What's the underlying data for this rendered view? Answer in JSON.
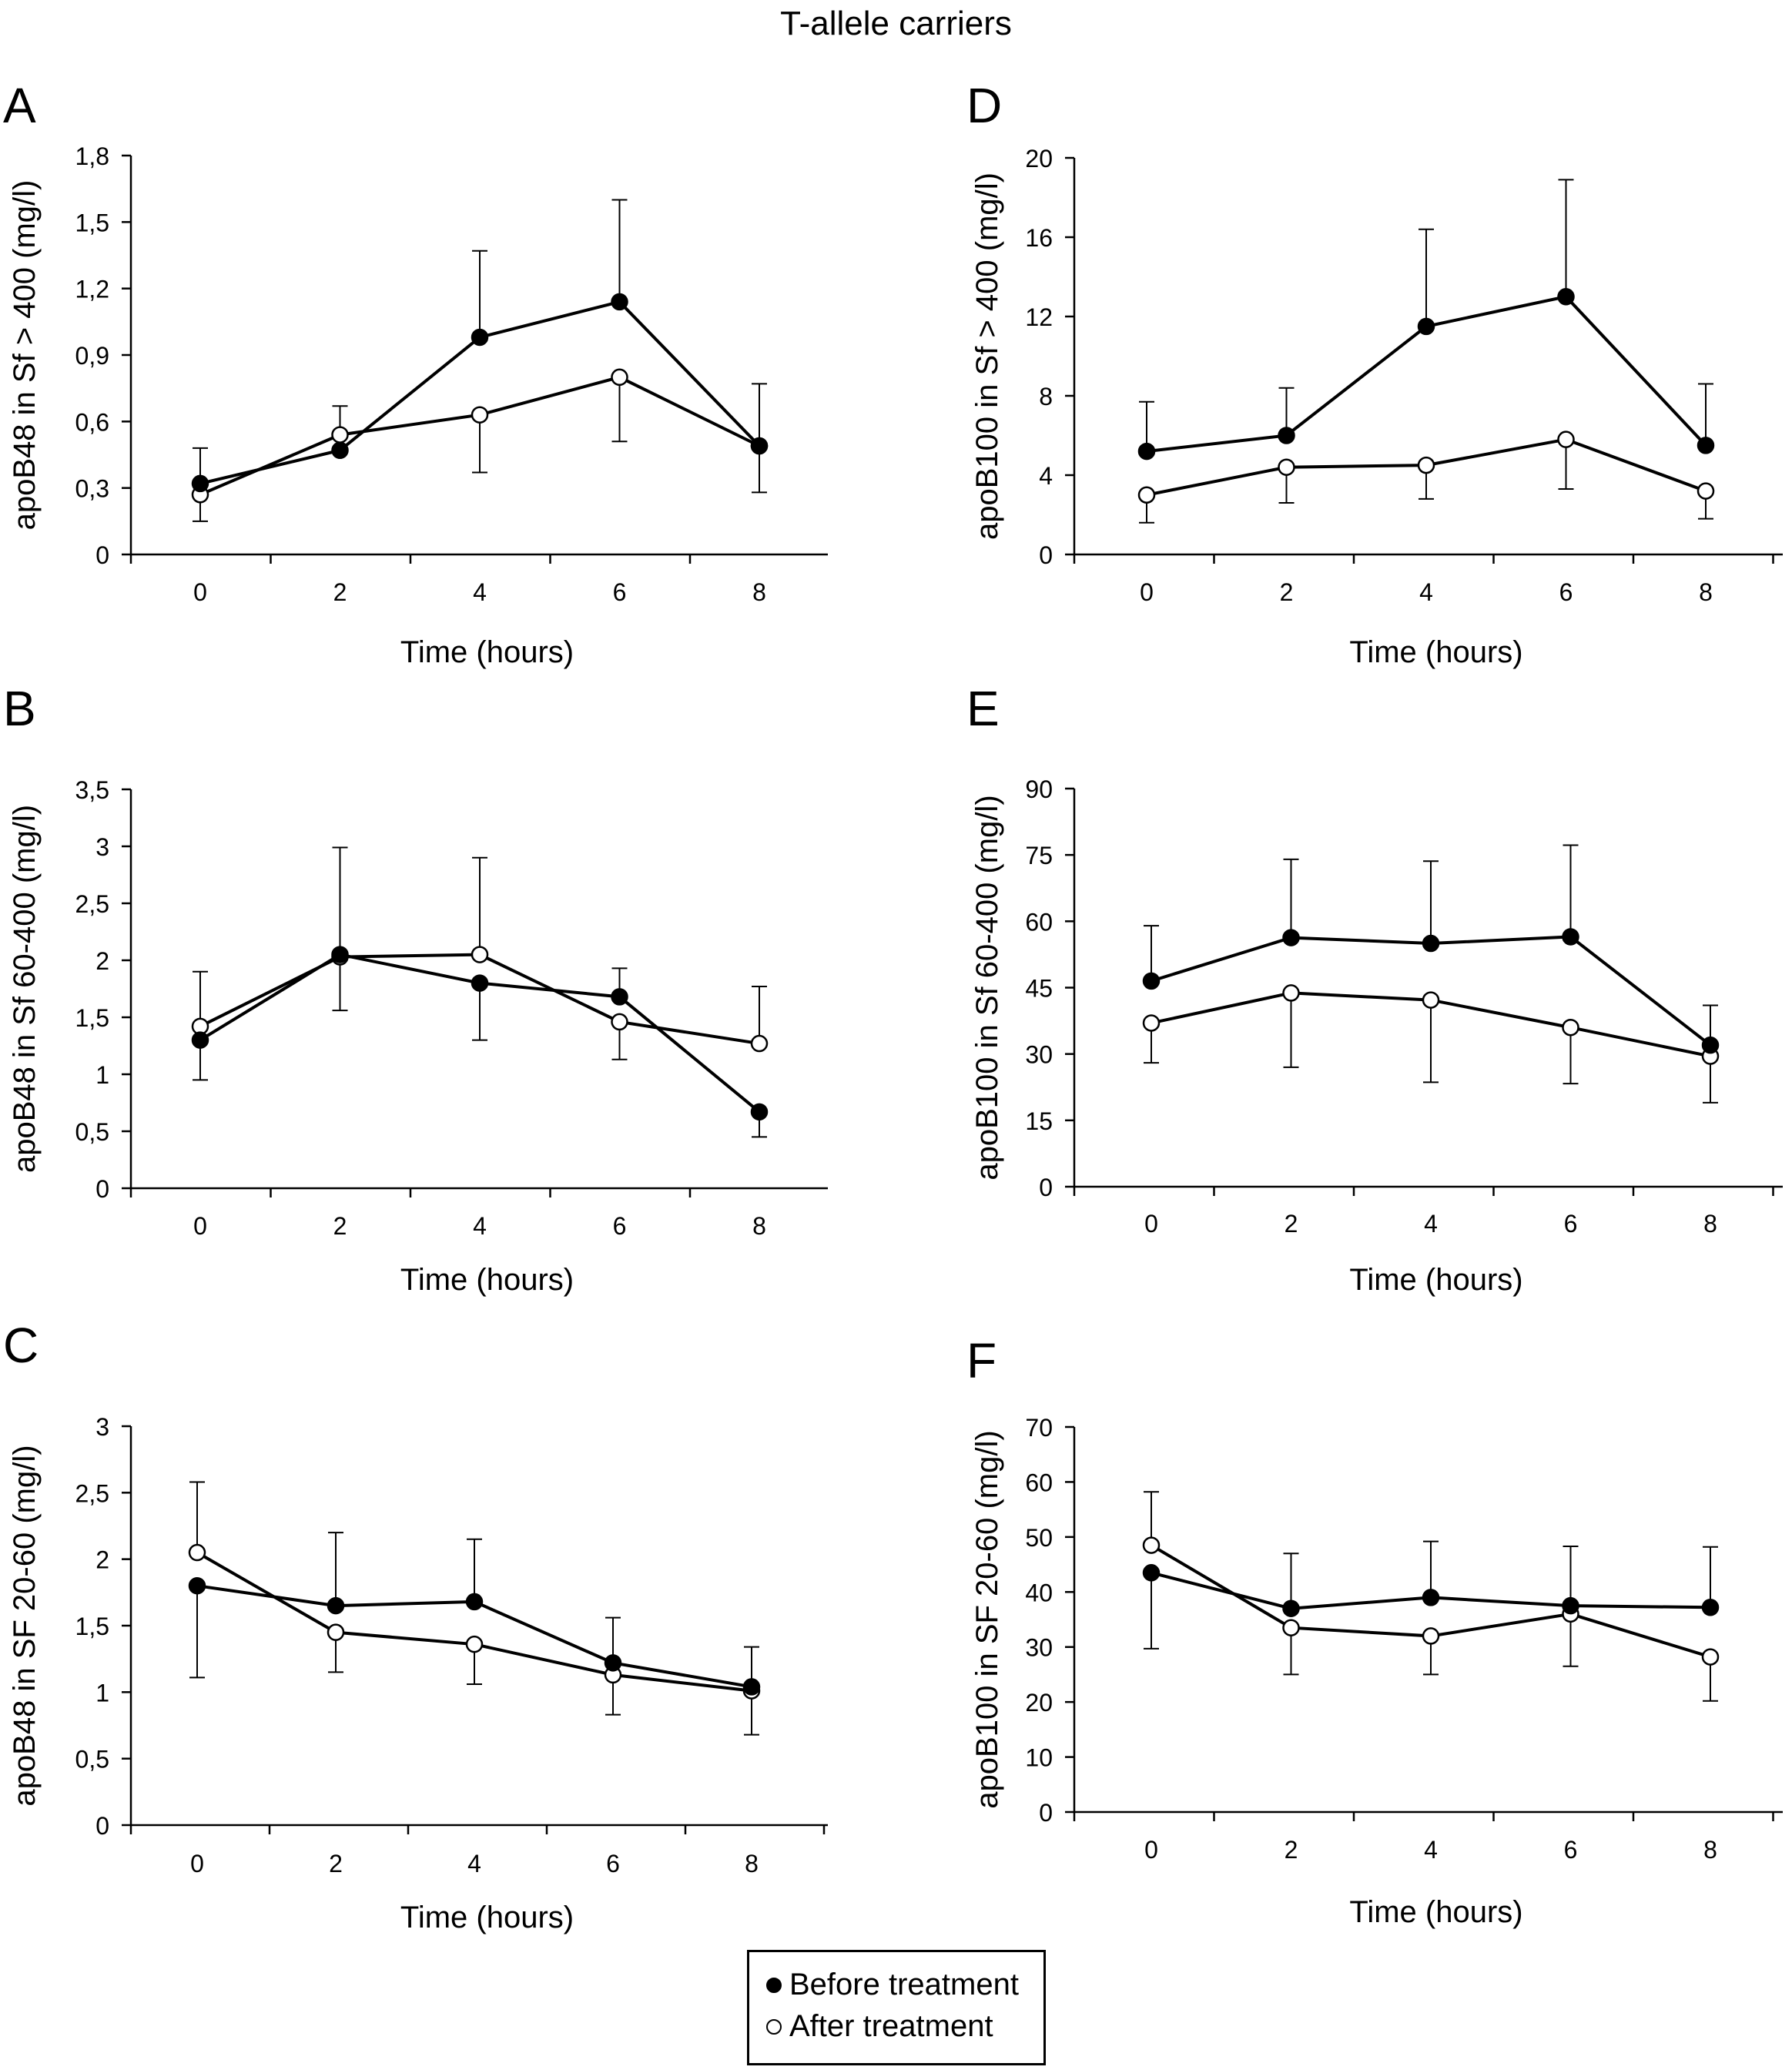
{
  "figure": {
    "title": "T-allele carriers",
    "legend": {
      "before_label": "Before treatment",
      "after_label": "After treatment"
    }
  },
  "chart_data": [
    {
      "panel": "A",
      "type": "line",
      "xlabel": "Time (hours)",
      "ylabel": "apoB48 in Sf > 400 (mg/l)",
      "x": [
        0,
        2,
        4,
        6,
        8
      ],
      "xticks": [
        "0",
        "2",
        "4",
        "6",
        "8"
      ],
      "ylim": [
        0,
        1.8
      ],
      "yticks": [
        0,
        0.3,
        0.6,
        0.9,
        1.2,
        1.5,
        1.8
      ],
      "ytick_labels": [
        "0",
        "0,3",
        "0,6",
        "0,9",
        "1,2",
        "1,5",
        "1,8"
      ],
      "series": [
        {
          "name": "Before treatment",
          "marker": "filled",
          "values": [
            0.32,
            0.47,
            0.98,
            1.14,
            0.49
          ],
          "err": [
            0.16,
            0.0,
            0.39,
            0.46,
            0.28
          ]
        },
        {
          "name": "After treatment",
          "marker": "open",
          "values": [
            0.27,
            0.54,
            0.63,
            0.8,
            0.49
          ],
          "err": [
            0.12,
            0.13,
            0.26,
            0.29,
            0.21
          ]
        }
      ]
    },
    {
      "panel": "B",
      "type": "line",
      "xlabel": "Time (hours)",
      "ylabel": "apoB48 in Sf 60-400 (mg/l)",
      "x": [
        0,
        2,
        4,
        6,
        8
      ],
      "xticks": [
        "0",
        "2",
        "4",
        "6",
        "8"
      ],
      "ylim": [
        0,
        3.5
      ],
      "yticks": [
        0,
        0.5,
        1,
        1.5,
        2,
        2.5,
        3,
        3.5
      ],
      "ytick_labels": [
        "0",
        "0,5",
        "1",
        "1,5",
        "2",
        "2,5",
        "3",
        "3,5"
      ],
      "series": [
        {
          "name": "Before treatment",
          "marker": "filled",
          "values": [
            1.3,
            2.05,
            1.8,
            1.68,
            0.67
          ],
          "err": [
            0.35,
            0.94,
            0.5,
            0.25,
            0.22
          ]
        },
        {
          "name": "After treatment",
          "marker": "open",
          "values": [
            1.42,
            2.03,
            2.05,
            1.46,
            1.27
          ],
          "err": [
            0.48,
            0.47,
            0.85,
            0.33,
            0.5
          ]
        }
      ]
    },
    {
      "panel": "C",
      "type": "line",
      "xlabel": "Time (hours)",
      "ylabel": "apoB48 in SF 20-60 (mg/l)",
      "x": [
        0,
        2,
        4,
        6,
        8
      ],
      "xticks": [
        "0",
        "2",
        "4",
        "6",
        "8"
      ],
      "ylim": [
        0,
        3
      ],
      "yticks": [
        0,
        0.5,
        1,
        1.5,
        2,
        2.5,
        3
      ],
      "ytick_labels": [
        "0",
        "0,5",
        "1",
        "1,5",
        "2",
        "2,5",
        "3"
      ],
      "series": [
        {
          "name": "Before treatment",
          "marker": "filled",
          "values": [
            1.8,
            1.65,
            1.68,
            1.22,
            1.04
          ],
          "err": [
            0.69,
            0.55,
            0.47,
            0.34,
            0.3
          ]
        },
        {
          "name": "After treatment",
          "marker": "open",
          "values": [
            2.05,
            1.45,
            1.36,
            1.13,
            1.01
          ],
          "err": [
            0.53,
            0.3,
            0.3,
            0.3,
            0.33
          ]
        }
      ]
    },
    {
      "panel": "D",
      "type": "line",
      "xlabel": "Time (hours)",
      "ylabel": "apoB100 in Sf > 400 (mg/l)",
      "x": [
        0,
        2,
        4,
        6,
        8
      ],
      "xticks": [
        "0",
        "2",
        "4",
        "6",
        "8"
      ],
      "ylim": [
        0,
        20
      ],
      "yticks": [
        0,
        4,
        8,
        12,
        16,
        20
      ],
      "ytick_labels": [
        "0",
        "4",
        "8",
        "12",
        "16",
        "20"
      ],
      "series": [
        {
          "name": "Before treatment",
          "marker": "filled",
          "values": [
            5.2,
            6.0,
            11.5,
            13.0,
            5.5
          ],
          "err": [
            2.5,
            2.4,
            4.9,
            5.9,
            3.1
          ]
        },
        {
          "name": "After treatment",
          "marker": "open",
          "values": [
            3.0,
            4.4,
            4.5,
            5.8,
            3.2
          ],
          "err": [
            1.4,
            1.8,
            1.7,
            2.5,
            1.4
          ]
        }
      ]
    },
    {
      "panel": "E",
      "type": "line",
      "xlabel": "Time (hours)",
      "ylabel": "apoB100 in Sf 60-400 (mg/l)",
      "x": [
        0,
        2,
        4,
        6,
        8
      ],
      "xticks": [
        "0",
        "2",
        "4",
        "6",
        "8"
      ],
      "ylim": [
        0,
        90
      ],
      "yticks": [
        0,
        15,
        30,
        45,
        60,
        75,
        90
      ],
      "ytick_labels": [
        "0",
        "15",
        "30",
        "45",
        "60",
        "75",
        "90"
      ],
      "series": [
        {
          "name": "Before treatment",
          "marker": "filled",
          "values": [
            46.5,
            56.3,
            55.0,
            56.5,
            32.0
          ],
          "err": [
            12.5,
            17.7,
            18.6,
            20.7,
            9.0
          ]
        },
        {
          "name": "After treatment",
          "marker": "open",
          "values": [
            37.0,
            43.8,
            42.2,
            36.0,
            29.5
          ],
          "err": [
            9.0,
            16.8,
            18.6,
            12.7,
            10.5
          ]
        }
      ]
    },
    {
      "panel": "F",
      "type": "line",
      "xlabel": "Time (hours)",
      "ylabel": "apoB100 in SF 20-60 (mg/l)",
      "x": [
        0,
        2,
        4,
        6,
        8
      ],
      "xticks": [
        "0",
        "2",
        "4",
        "6",
        "8"
      ],
      "ylim": [
        0,
        70
      ],
      "yticks": [
        0,
        10,
        20,
        30,
        40,
        50,
        60,
        70
      ],
      "ytick_labels": [
        "0",
        "10",
        "20",
        "30",
        "40",
        "50",
        "60",
        "70"
      ],
      "series": [
        {
          "name": "Before treatment",
          "marker": "filled",
          "values": [
            43.5,
            37.0,
            39.0,
            37.5,
            37.2
          ],
          "err": [
            13.8,
            10.0,
            10.2,
            10.8,
            11.0
          ]
        },
        {
          "name": "After treatment",
          "marker": "open",
          "values": [
            48.5,
            33.5,
            32.0,
            36.0,
            28.2
          ],
          "err": [
            9.7,
            8.5,
            7.0,
            9.5,
            8.0
          ]
        }
      ]
    }
  ]
}
